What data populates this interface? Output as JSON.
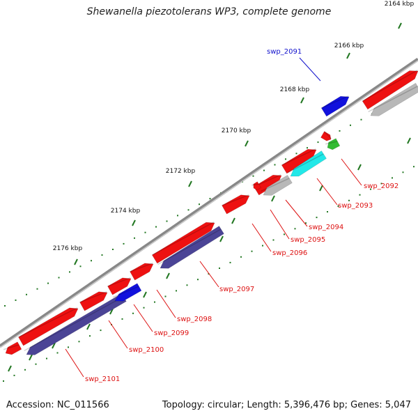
{
  "title": "Shewanella piezotolerans WP3, complete genome",
  "footer": {
    "accession": "Accession: NC_011566",
    "summary": "Topology: circular; Length: 5,396,476 bp; Genes: 5,047"
  },
  "colors": {
    "forward_gene": "#ee1111",
    "reverse_gene": "#4b4496",
    "highlight_blue": "#1111dd",
    "cyan_gene": "#22e8e8",
    "green_gene": "#33bb33",
    "gray_gene": "#b8b8b8",
    "backbone": "#888888",
    "tick": "#227722",
    "red_label": "#dd1111",
    "blue_label": "#1111cc"
  },
  "ticks": [
    {
      "label": "2164 kbp"
    },
    {
      "label": "2166 kbp"
    },
    {
      "label": "2168 kbp"
    },
    {
      "label": "2170 kbp"
    },
    {
      "label": "2172 kbp"
    },
    {
      "label": "2174 kbp"
    },
    {
      "label": "2176 kbp"
    }
  ],
  "gene_labels": [
    {
      "id": "swp_2091",
      "color": "blue"
    },
    {
      "id": "swp_2092",
      "color": "red"
    },
    {
      "id": "swp_2093",
      "color": "red"
    },
    {
      "id": "swp_2094",
      "color": "red"
    },
    {
      "id": "swp_2095",
      "color": "red"
    },
    {
      "id": "swp_2096",
      "color": "red"
    },
    {
      "id": "swp_2097",
      "color": "red"
    },
    {
      "id": "swp_2098",
      "color": "red"
    },
    {
      "id": "swp_2099",
      "color": "red"
    },
    {
      "id": "swp_2100",
      "color": "red"
    },
    {
      "id": "swp_2101",
      "color": "red"
    }
  ]
}
